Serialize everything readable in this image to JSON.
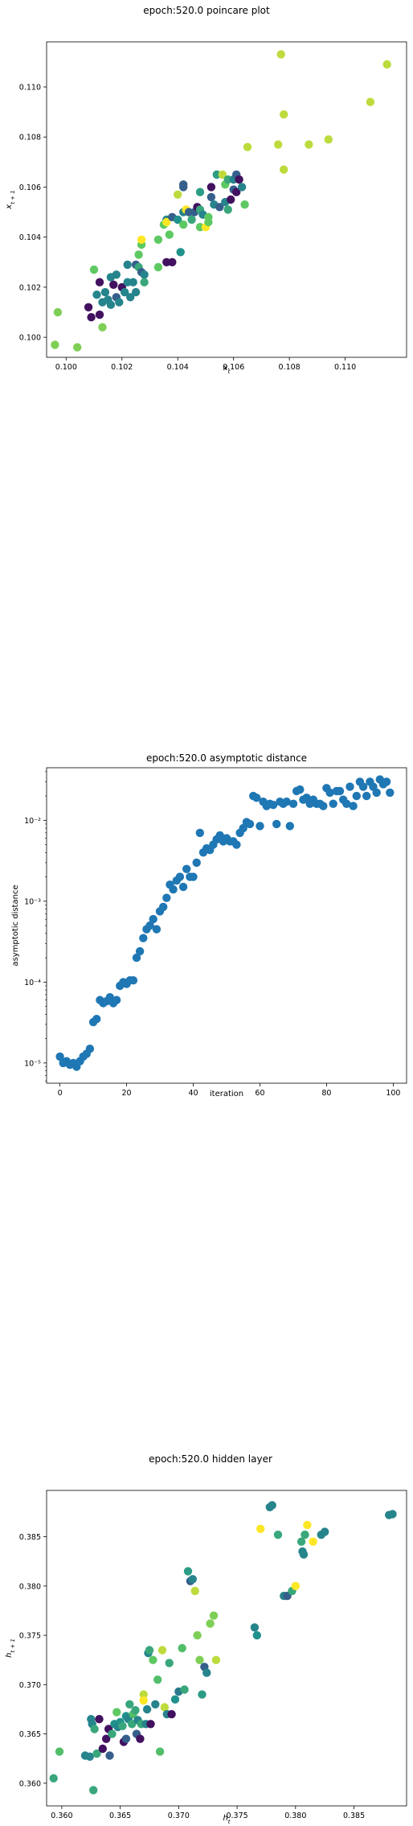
{
  "chart_data": [
    {
      "type": "scatter",
      "title": "epoch:520.0 poincare plot",
      "xlabel": "x_t",
      "ylabel": "x_{t+1}",
      "xlim": [
        0.0993,
        0.1122
      ],
      "ylim": [
        0.0992,
        0.1118
      ],
      "xticks": [
        "0.100",
        "0.102",
        "0.104",
        "0.106",
        "0.108",
        "0.110"
      ],
      "yticks": [
        "0.100",
        "0.102",
        "0.104",
        "0.106",
        "0.108",
        "0.110"
      ],
      "colormap": "viridis",
      "points": [
        [
          0.1008,
          0.1012,
          0.05
        ],
        [
          0.1009,
          0.1008,
          0.05
        ],
        [
          0.101,
          0.1027,
          0.75
        ],
        [
          0.1011,
          0.1017,
          0.45
        ],
        [
          0.1012,
          0.1022,
          0.05
        ],
        [
          0.1012,
          0.1009,
          0.05
        ],
        [
          0.1013,
          0.1004,
          0.8
        ],
        [
          0.1013,
          0.1014,
          0.45
        ],
        [
          0.1014,
          0.1018,
          0.45
        ],
        [
          0.1015,
          0.1015,
          0.45
        ],
        [
          0.1016,
          0.1024,
          0.45
        ],
        [
          0.1016,
          0.1013,
          0.45
        ],
        [
          0.1017,
          0.1021,
          0.05
        ],
        [
          0.1018,
          0.1025,
          0.45
        ],
        [
          0.1018,
          0.1016,
          0.3
        ],
        [
          0.1019,
          0.1014,
          0.45
        ],
        [
          0.102,
          0.102,
          0.05
        ],
        [
          0.1021,
          0.1018,
          0.45
        ],
        [
          0.1022,
          0.1022,
          0.45
        ],
        [
          0.1022,
          0.1029,
          0.45
        ],
        [
          0.1023,
          0.1016,
          0.45
        ],
        [
          0.1024,
          0.1022,
          0.45
        ],
        [
          0.1025,
          0.1029,
          0.3
        ],
        [
          0.1025,
          0.1018,
          0.45
        ],
        [
          0.1026,
          0.1033,
          0.75
        ],
        [
          0.1026,
          0.1028,
          0.6
        ],
        [
          0.1027,
          0.1026,
          0.3
        ],
        [
          0.1027,
          0.1037,
          0.75
        ],
        [
          0.1027,
          0.1039,
          1.0
        ],
        [
          0.1028,
          0.1025,
          0.45
        ],
        [
          0.1028,
          0.1022,
          0.6
        ],
        [
          0.1033,
          0.1028,
          0.75
        ],
        [
          0.1033,
          0.1039,
          0.75
        ],
        [
          0.1035,
          0.1045,
          0.75
        ],
        [
          0.1036,
          0.1047,
          0.45
        ],
        [
          0.1036,
          0.103,
          0.05
        ],
        [
          0.1036,
          0.1046,
          1.0
        ],
        [
          0.1037,
          0.1041,
          0.75
        ],
        [
          0.1038,
          0.103,
          0.05
        ],
        [
          0.1038,
          0.1048,
          0.3
        ],
        [
          0.104,
          0.1047,
          0.5
        ],
        [
          0.104,
          0.1057,
          0.9
        ],
        [
          0.1041,
          0.1034,
          0.5
        ],
        [
          0.1042,
          0.1045,
          0.75
        ],
        [
          0.1042,
          0.105,
          0.45
        ],
        [
          0.1042,
          0.106,
          0.3
        ],
        [
          0.1042,
          0.1061,
          0.3
        ],
        [
          0.1043,
          0.1051,
          1.0
        ],
        [
          0.1044,
          0.105,
          0.3
        ],
        [
          0.1045,
          0.1047,
          0.6
        ],
        [
          0.1046,
          0.105,
          0.3
        ],
        [
          0.1047,
          0.1052,
          0.05
        ],
        [
          0.1048,
          0.1044,
          0.75
        ],
        [
          0.1048,
          0.1051,
          0.6
        ],
        [
          0.1048,
          0.1058,
          0.55
        ],
        [
          0.1049,
          0.1049,
          0.45
        ],
        [
          0.105,
          0.1044,
          1.0
        ],
        [
          0.1051,
          0.1046,
          0.75
        ],
        [
          0.1051,
          0.1048,
          0.75
        ],
        [
          0.1052,
          0.1056,
          0.3
        ],
        [
          0.1052,
          0.106,
          0.05
        ],
        [
          0.1053,
          0.1053,
          0.45
        ],
        [
          0.1054,
          0.1065,
          0.55
        ],
        [
          0.1055,
          0.1052,
          0.3
        ],
        [
          0.1056,
          0.1065,
          0.9
        ],
        [
          0.1057,
          0.1061,
          0.75
        ],
        [
          0.1057,
          0.1054,
          0.45
        ],
        [
          0.1058,
          0.1051,
          0.6
        ],
        [
          0.1058,
          0.1063,
          0.6
        ],
        [
          0.1059,
          0.1055,
          0.05
        ],
        [
          0.106,
          0.1059,
          0.3
        ],
        [
          0.106,
          0.1063,
          0.45
        ],
        [
          0.1061,
          0.1065,
          0.3
        ],
        [
          0.1061,
          0.1058,
          0.05
        ],
        [
          0.1062,
          0.1063,
          0.05
        ],
        [
          0.1063,
          0.106,
          0.45
        ],
        [
          0.1064,
          0.1053,
          0.75
        ],
        [
          0.1065,
          0.1076,
          0.9
        ],
        [
          0.1076,
          0.1077,
          0.9
        ],
        [
          0.1077,
          0.1113,
          0.9
        ],
        [
          0.1078,
          0.1089,
          0.9
        ],
        [
          0.1078,
          0.1067,
          0.9
        ],
        [
          0.1087,
          0.1077,
          0.9
        ],
        [
          0.1094,
          0.1079,
          0.9
        ],
        [
          0.1109,
          0.1094,
          0.9
        ],
        [
          0.1115,
          0.1109,
          0.9
        ],
        [
          0.0997,
          0.101,
          0.8
        ],
        [
          0.0996,
          0.0997,
          0.8
        ],
        [
          0.1004,
          0.0996,
          0.8
        ]
      ]
    },
    {
      "type": "scatter",
      "title": "epoch:520.0 asymptotic distance",
      "xlabel": "iteration",
      "ylabel": "asymptotic distance",
      "xlim": [
        -4,
        104
      ],
      "yscale": "log",
      "ylim_log10": [
        -5.25,
        -1.35
      ],
      "xticks": [
        0,
        20,
        40,
        60,
        80,
        100
      ],
      "yticks": [
        "10⁻⁵",
        "10⁻⁴",
        "10⁻³",
        "10⁻²"
      ],
      "color": "#1f77b4",
      "x": [
        0,
        1,
        2,
        3,
        4,
        5,
        6,
        7,
        8,
        9,
        10,
        11,
        12,
        13,
        14,
        15,
        16,
        17,
        18,
        19,
        20,
        21,
        22,
        23,
        24,
        25,
        26,
        27,
        28,
        29,
        30,
        31,
        32,
        33,
        34,
        35,
        36,
        37,
        38,
        39,
        40,
        41,
        42,
        43,
        44,
        45,
        46,
        47,
        48,
        49,
        50,
        51,
        52,
        53,
        54,
        55,
        56,
        57,
        58,
        59,
        60,
        61,
        62,
        63,
        64,
        65,
        66,
        67,
        68,
        69,
        70,
        71,
        72,
        73,
        74,
        75,
        76,
        77,
        78,
        79,
        80,
        81,
        82,
        83,
        84,
        85,
        86,
        87,
        88,
        89,
        90,
        91,
        92,
        93,
        94,
        95,
        96,
        97,
        98,
        99
      ],
      "y": [
        1.2e-05,
        1e-05,
        1.05e-05,
        9.5e-06,
        1e-05,
        9e-06,
        1.05e-05,
        1.2e-05,
        1.3e-05,
        1.5e-05,
        3.2e-05,
        3.5e-05,
        6e-05,
        5.5e-05,
        5.8e-05,
        6.5e-05,
        5.5e-05,
        6e-05,
        9e-05,
        0.0001,
        9.5e-05,
        0.000105,
        0.000105,
        0.0002,
        0.00024,
        0.00035,
        0.00045,
        0.0005,
        0.0006,
        0.00045,
        0.00075,
        0.00085,
        0.0011,
        0.0016,
        0.0014,
        0.0018,
        0.002,
        0.0015,
        0.0025,
        0.002,
        0.002,
        0.003,
        0.007,
        0.004,
        0.0045,
        0.0043,
        0.005,
        0.0058,
        0.0065,
        0.0055,
        0.006,
        0.0055,
        0.0055,
        0.005,
        0.007,
        0.008,
        0.0095,
        0.009,
        0.02,
        0.019,
        0.0085,
        0.017,
        0.015,
        0.016,
        0.0155,
        0.009,
        0.017,
        0.016,
        0.017,
        0.0085,
        0.016,
        0.023,
        0.024,
        0.018,
        0.019,
        0.016,
        0.018,
        0.016,
        0.016,
        0.015,
        0.025,
        0.022,
        0.016,
        0.023,
        0.023,
        0.018,
        0.016,
        0.026,
        0.015,
        0.02,
        0.03,
        0.026,
        0.02,
        0.03,
        0.026,
        0.022,
        0.032,
        0.028,
        0.03,
        0.022
      ]
    },
    {
      "type": "scatter",
      "title": "epoch:520.0 hidden layer",
      "xlabel": "h_t",
      "ylabel": "h_{t+1}",
      "xlim": [
        0.3587,
        0.3895
      ],
      "ylim": [
        0.3577,
        0.3897
      ],
      "xticks": [
        "0.360",
        "0.365",
        "0.370",
        "0.375",
        "0.380",
        "0.385"
      ],
      "yticks": [
        "0.360",
        "0.365",
        "0.370",
        "0.375",
        "0.380",
        "0.385"
      ],
      "colormap": "viridis",
      "points": [
        [
          0.3593,
          0.3605,
          0.6
        ],
        [
          0.3598,
          0.3632,
          0.7
        ],
        [
          0.362,
          0.3628,
          0.45
        ],
        [
          0.3624,
          0.3627,
          0.45
        ],
        [
          0.3625,
          0.3665,
          0.45
        ],
        [
          0.3626,
          0.366,
          0.45
        ],
        [
          0.3627,
          0.3593,
          0.6
        ],
        [
          0.3628,
          0.3655,
          0.6
        ],
        [
          0.363,
          0.363,
          0.6
        ],
        [
          0.3632,
          0.3665,
          0.05
        ],
        [
          0.3635,
          0.3635,
          0.05
        ],
        [
          0.3638,
          0.3645,
          0.05
        ],
        [
          0.364,
          0.3655,
          0.05
        ],
        [
          0.3641,
          0.3628,
          0.3
        ],
        [
          0.3643,
          0.365,
          0.6
        ],
        [
          0.3645,
          0.366,
          0.5
        ],
        [
          0.3647,
          0.3672,
          0.75
        ],
        [
          0.3648,
          0.3657,
          0.45
        ],
        [
          0.365,
          0.3662,
          0.5
        ],
        [
          0.3652,
          0.3658,
          0.6
        ],
        [
          0.3653,
          0.3642,
          0.05
        ],
        [
          0.3655,
          0.3668,
          0.5
        ],
        [
          0.3655,
          0.3645,
          0.3
        ],
        [
          0.3657,
          0.3665,
          0.45
        ],
        [
          0.3658,
          0.368,
          0.6
        ],
        [
          0.366,
          0.366,
          0.6
        ],
        [
          0.3661,
          0.367,
          0.7
        ],
        [
          0.3663,
          0.3674,
          0.6
        ],
        [
          0.3664,
          0.365,
          0.3
        ],
        [
          0.3665,
          0.3664,
          0.45
        ],
        [
          0.3667,
          0.3645,
          0.05
        ],
        [
          0.3668,
          0.366,
          0.6
        ],
        [
          0.367,
          0.369,
          0.9
        ],
        [
          0.367,
          0.3684,
          1.0
        ],
        [
          0.3672,
          0.366,
          0.45
        ],
        [
          0.3673,
          0.3675,
          0.45
        ],
        [
          0.3674,
          0.3732,
          0.45
        ],
        [
          0.3675,
          0.3735,
          0.6
        ],
        [
          0.3676,
          0.366,
          0.05
        ],
        [
          0.3678,
          0.3725,
          0.75
        ],
        [
          0.368,
          0.368,
          0.45
        ],
        [
          0.3682,
          0.3705,
          0.7
        ],
        [
          0.3684,
          0.3632,
          0.7
        ],
        [
          0.3686,
          0.3735,
          0.9
        ],
        [
          0.3688,
          0.3677,
          0.9
        ],
        [
          0.369,
          0.367,
          0.45
        ],
        [
          0.3692,
          0.3722,
          0.6
        ],
        [
          0.3694,
          0.367,
          0.05
        ],
        [
          0.3697,
          0.3685,
          0.5
        ],
        [
          0.37,
          0.3693,
          0.4
        ],
        [
          0.3703,
          0.3737,
          0.7
        ],
        [
          0.3705,
          0.3695,
          0.6
        ],
        [
          0.3708,
          0.3815,
          0.55
        ],
        [
          0.371,
          0.3805,
          0.3
        ],
        [
          0.3712,
          0.3807,
          0.45
        ],
        [
          0.3714,
          0.3795,
          0.9
        ],
        [
          0.3716,
          0.375,
          0.8
        ],
        [
          0.3718,
          0.3725,
          0.8
        ],
        [
          0.372,
          0.369,
          0.55
        ],
        [
          0.3722,
          0.3718,
          0.3
        ],
        [
          0.3724,
          0.3712,
          0.45
        ],
        [
          0.3727,
          0.3762,
          0.8
        ],
        [
          0.373,
          0.377,
          0.8
        ],
        [
          0.3732,
          0.3725,
          0.9
        ],
        [
          0.3765,
          0.3758,
          0.45
        ],
        [
          0.3767,
          0.375,
          0.5
        ],
        [
          0.377,
          0.3858,
          1.0
        ],
        [
          0.3778,
          0.388,
          0.45
        ],
        [
          0.378,
          0.3882,
          0.45
        ],
        [
          0.3785,
          0.3852,
          0.6
        ],
        [
          0.379,
          0.379,
          0.45
        ],
        [
          0.3793,
          0.379,
          0.3
        ],
        [
          0.3797,
          0.3795,
          0.6
        ],
        [
          0.38,
          0.38,
          1.0
        ],
        [
          0.3805,
          0.3845,
          0.6
        ],
        [
          0.3806,
          0.3835,
          0.45
        ],
        [
          0.3807,
          0.3832,
          0.45
        ],
        [
          0.3808,
          0.3852,
          0.6
        ],
        [
          0.381,
          0.3862,
          1.0
        ],
        [
          0.3815,
          0.3845,
          1.0
        ],
        [
          0.3822,
          0.3852,
          0.45
        ],
        [
          0.3825,
          0.3855,
          0.45
        ],
        [
          0.388,
          0.3872,
          0.45
        ],
        [
          0.3883,
          0.3873,
          0.45
        ]
      ]
    }
  ]
}
